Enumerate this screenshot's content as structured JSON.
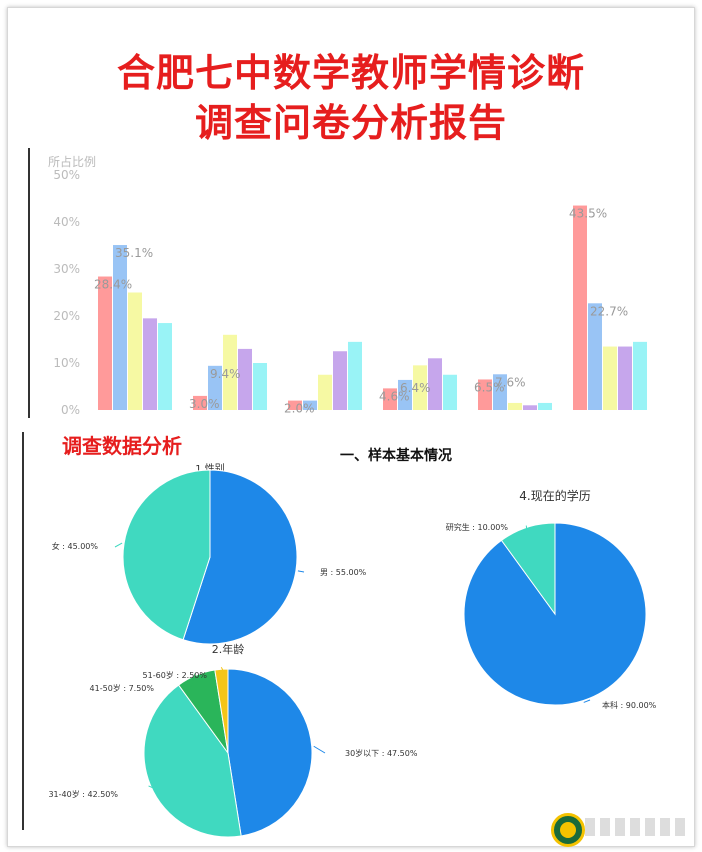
{
  "titles": {
    "line1": "合肥七中数学教师学情诊断",
    "line2": "调查问卷分析报告"
  },
  "colors": {
    "title_red": "#e61e1e",
    "pie_blue": "#1e88e8",
    "pie_teal": "#40d9c0",
    "pie_green": "#2ab55a",
    "pie_yellow": "#f5c518",
    "bar_series": [
      "#ff9a9a",
      "#99c4f5",
      "#f6f9a3",
      "#c6a6ec",
      "#99f3f6"
    ]
  },
  "sections": {
    "analysis": "调查数据分析",
    "sample": "一、样本基本情况"
  },
  "chart_data": [
    {
      "type": "bar",
      "ylabel": "所占比例",
      "ylim": [
        0,
        50
      ],
      "yticks": [
        "0%",
        "10%",
        "20%",
        "30%",
        "40%",
        "50%"
      ],
      "groups": 6,
      "series": [
        {
          "values": [
            28.4,
            3.0,
            2.0,
            4.6,
            6.5,
            43.5
          ]
        },
        {
          "values": [
            35.1,
            9.4,
            2.0,
            6.4,
            7.6,
            22.7
          ]
        },
        {
          "values": [
            25.0,
            16.0,
            7.5,
            9.5,
            1.5,
            13.5
          ]
        },
        {
          "values": [
            19.5,
            13.0,
            12.5,
            11.0,
            1.0,
            13.5
          ]
        },
        {
          "values": [
            18.5,
            10.0,
            14.5,
            7.5,
            1.5,
            14.5
          ]
        }
      ],
      "data_labels": [
        {
          "group": 0,
          "series": 0,
          "text": "28.4%"
        },
        {
          "group": 0,
          "series": 1,
          "text": "35.1%"
        },
        {
          "group": 1,
          "series": 0,
          "text": "3.0%"
        },
        {
          "group": 1,
          "series": 1,
          "text": "9.4%"
        },
        {
          "group": 2,
          "series": 0,
          "text": "2.0%"
        },
        {
          "group": 3,
          "series": 0,
          "text": "4.6%"
        },
        {
          "group": 3,
          "series": 1,
          "text": "6.4%"
        },
        {
          "group": 4,
          "series": 0,
          "text": "6.5%"
        },
        {
          "group": 4,
          "series": 1,
          "text": "7.6%"
        },
        {
          "group": 5,
          "series": 0,
          "text": "43.5%"
        },
        {
          "group": 5,
          "series": 1,
          "text": "22.7%"
        }
      ]
    },
    {
      "type": "pie",
      "title": "1.性别",
      "slices": [
        {
          "label": "男",
          "value": 55.0,
          "text": "男 : 55.00%",
          "color": "#1e88e8"
        },
        {
          "label": "女",
          "value": 45.0,
          "text": "女 : 45.00%",
          "color": "#40d9c0"
        }
      ]
    },
    {
      "type": "pie",
      "title": "2.年龄",
      "slices": [
        {
          "label": "30岁以下",
          "value": 47.5,
          "text": "30岁以下 : 47.50%",
          "color": "#1e88e8"
        },
        {
          "label": "31-40岁",
          "value": 42.5,
          "text": "31-40岁 : 42.50%",
          "color": "#40d9c0"
        },
        {
          "label": "41-50岁",
          "value": 7.5,
          "text": "41-50岁 : 7.50%",
          "color": "#2ab55a"
        },
        {
          "label": "51-60岁",
          "value": 2.5,
          "text": "51-60岁 : 2.50%",
          "color": "#f5c518"
        }
      ]
    },
    {
      "type": "pie",
      "title": "4.现在的学历",
      "slices": [
        {
          "label": "本科",
          "value": 90.0,
          "text": "本科 : 90.00%",
          "color": "#1e88e8"
        },
        {
          "label": "研究生",
          "value": 10.0,
          "text": "研究生 : 10.00%",
          "color": "#40d9c0"
        }
      ]
    }
  ]
}
